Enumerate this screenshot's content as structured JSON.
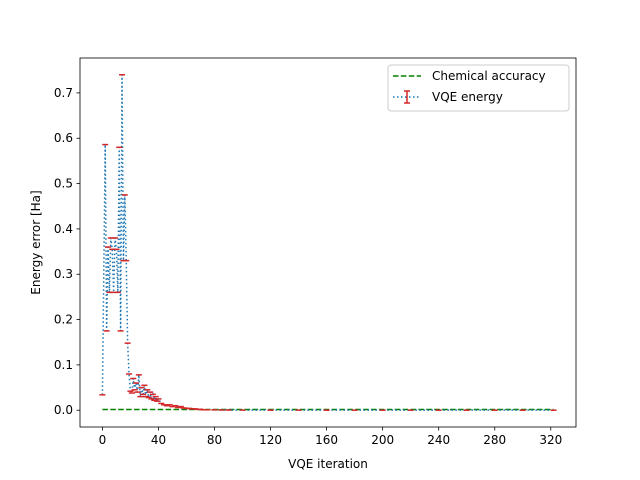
{
  "chart_data": {
    "type": "line",
    "title": "",
    "xlabel": "VQE iteration",
    "ylabel": "Energy error [Ha]",
    "xlim": [
      -16,
      338
    ],
    "ylim": [
      -0.037,
      0.777
    ],
    "xticks": [
      "0",
      "40",
      "80",
      "120",
      "160",
      "200",
      "240",
      "280",
      "320"
    ],
    "yticks": [
      "0.0",
      "0.1",
      "0.2",
      "0.3",
      "0.4",
      "0.5",
      "0.6",
      "0.7"
    ],
    "legend": {
      "placement": "top-right",
      "entries": [
        "Chemical accuracy",
        "VQE energy"
      ]
    },
    "grid": false,
    "colors": {
      "vqe": "#1f77b4",
      "errorbar": "#d62728",
      "accuracy": "#008000"
    },
    "series": [
      {
        "name": "VQE energy",
        "style": "dotted",
        "x": [
          0,
          2,
          3,
          4,
          5,
          6,
          7,
          8,
          9,
          10,
          11,
          12,
          13,
          14,
          15,
          16,
          17,
          18,
          19,
          20,
          21,
          22,
          23,
          24,
          25,
          26,
          27,
          28,
          29,
          30,
          31,
          32,
          33,
          34,
          35,
          36,
          37,
          38,
          39,
          40,
          42,
          44,
          46,
          48,
          50,
          52,
          54,
          56,
          58,
          60,
          62,
          64,
          66,
          68,
          70,
          72,
          75,
          80,
          85,
          90,
          100,
          120,
          140,
          160,
          180,
          200,
          220,
          240,
          260,
          280,
          300,
          322
        ],
        "y": [
          0.034,
          0.586,
          0.175,
          0.36,
          0.26,
          0.38,
          0.355,
          0.26,
          0.38,
          0.355,
          0.26,
          0.58,
          0.175,
          0.74,
          0.33,
          0.475,
          0.33,
          0.148,
          0.08,
          0.042,
          0.038,
          0.07,
          0.045,
          0.06,
          0.04,
          0.078,
          0.03,
          0.05,
          0.035,
          0.055,
          0.03,
          0.045,
          0.028,
          0.04,
          0.025,
          0.035,
          0.022,
          0.03,
          0.02,
          0.025,
          0.015,
          0.012,
          0.01,
          0.012,
          0.008,
          0.01,
          0.006,
          0.008,
          0.005,
          0.004,
          0.004,
          0.003,
          0.003,
          0.002,
          0.002,
          0.001,
          0.001,
          0.0008,
          0.0005,
          0.0004,
          0.0003,
          0.0002,
          0.0002,
          0.0001,
          0.0001,
          0.0001,
          0.0001,
          0.0001,
          0.0001,
          0.0001,
          0.0001,
          0.0001
        ]
      },
      {
        "name": "Chemical accuracy",
        "style": "dashed",
        "x": [
          0,
          322
        ],
        "y": [
          0.0016,
          0.0016
        ]
      }
    ]
  }
}
